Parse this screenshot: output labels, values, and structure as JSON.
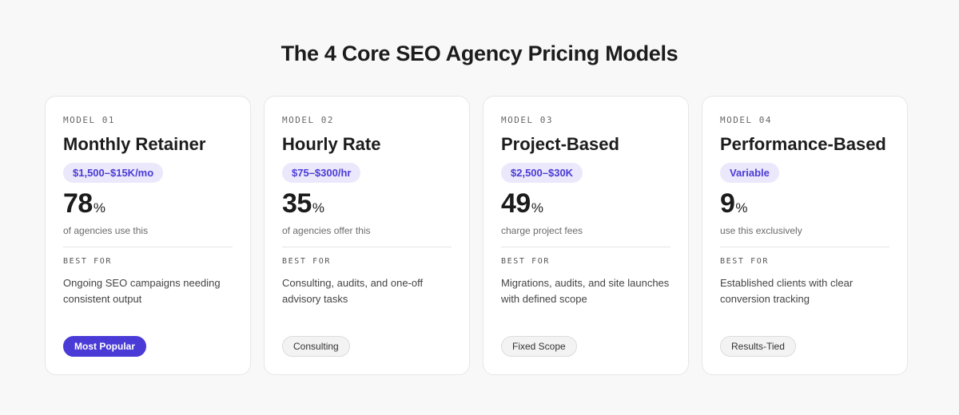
{
  "heading": "The 4 Core SEO Agency Pricing Models",
  "best_for_label": "BEST FOR",
  "models": [
    {
      "label": "MODEL 01",
      "name": "Monthly Retainer",
      "price": "$1,500–$15K/mo",
      "stat_value": "78",
      "stat_unit": "%",
      "stat_caption": "of agencies use this",
      "best_for": "Ongoing SEO campaigns needing consistent output",
      "tag": "Most Popular"
    },
    {
      "label": "MODEL 02",
      "name": "Hourly Rate",
      "price": "$75–$300/hr",
      "stat_value": "35",
      "stat_unit": "%",
      "stat_caption": "of agencies offer this",
      "best_for": "Consulting, audits, and one-off advisory tasks",
      "tag": "Consulting"
    },
    {
      "label": "MODEL 03",
      "name": "Project-Based",
      "price": "$2,500–$30K",
      "stat_value": "49",
      "stat_unit": "%",
      "stat_caption": "charge project fees",
      "best_for": "Migrations, audits, and site launches with defined scope",
      "tag": "Fixed Scope"
    },
    {
      "label": "MODEL 04",
      "name": "Performance-Based",
      "price": "Variable",
      "stat_value": "9",
      "stat_unit": "%",
      "stat_caption": "use this exclusively",
      "best_for": "Established clients with clear conversion tracking",
      "tag": "Results-Tied"
    }
  ],
  "colors": {
    "accent": "#4a3bd6",
    "badge_bg": "#ebe8fb",
    "page_bg": "#f8f8f8"
  }
}
